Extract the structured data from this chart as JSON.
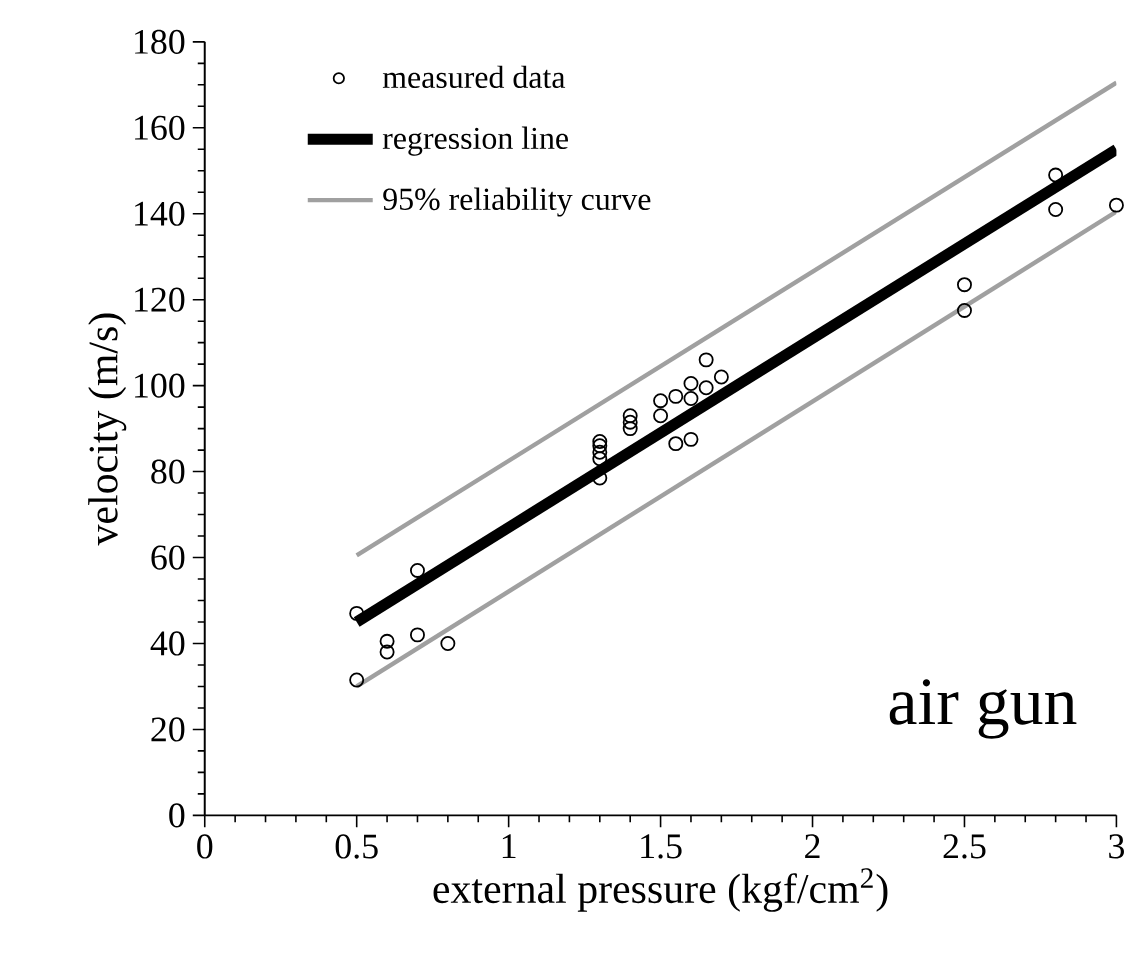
{
  "chart_data": {
    "type": "scatter",
    "xlabel": "external pressure (kgf/cm$^{2}$)",
    "ylabel": "velocity (m/s)",
    "annotations": [
      "air gun"
    ],
    "xlim": [
      0,
      3
    ],
    "ylim": [
      0,
      180
    ],
    "xticks": [
      0,
      0.5,
      1,
      1.5,
      2,
      2.5,
      3
    ],
    "yticks": [
      0,
      20,
      40,
      60,
      80,
      100,
      120,
      140,
      160,
      180
    ],
    "legend": "top left",
    "grid": false,
    "series": [
      {
        "name": "measured data",
        "marker": "circle",
        "color": "#000000",
        "x": [
          0.5,
          0.5,
          0.6,
          0.6,
          0.7,
          0.7,
          0.8,
          1.3,
          1.3,
          1.3,
          1.3,
          1.3,
          1.4,
          1.4,
          1.4,
          1.5,
          1.5,
          1.55,
          1.55,
          1.6,
          1.6,
          1.6,
          1.65,
          1.65,
          1.7,
          2.5,
          2.5,
          2.8,
          2.8,
          3.0
        ],
        "values": [
          47,
          31.5,
          40.5,
          38,
          57,
          42,
          40,
          87,
          86,
          84.5,
          83,
          78.5,
          93,
          91.5,
          90,
          96.5,
          93,
          97.5,
          86.5,
          100.5,
          97,
          87.5,
          106,
          99.5,
          102,
          123.5,
          117.5,
          149,
          141,
          142
        ]
      },
      {
        "name": "regression line",
        "type": "line",
        "line_style": "solid",
        "color": "#000000",
        "x": [
          0.5,
          3
        ],
        "values": [
          45,
          155
        ]
      },
      {
        "name": "95% reliability curve",
        "type": "line",
        "line_style": "solid",
        "color": "#a0a0a0",
        "x": [
          0.5,
          3
        ],
        "values": [
          60.5,
          170.5
        ]
      },
      {
        "type": "line",
        "line_style": "solid",
        "color": "#a0a0a0",
        "x": [
          0.5,
          3
        ],
        "values": [
          30,
          140.5
        ]
      }
    ]
  }
}
